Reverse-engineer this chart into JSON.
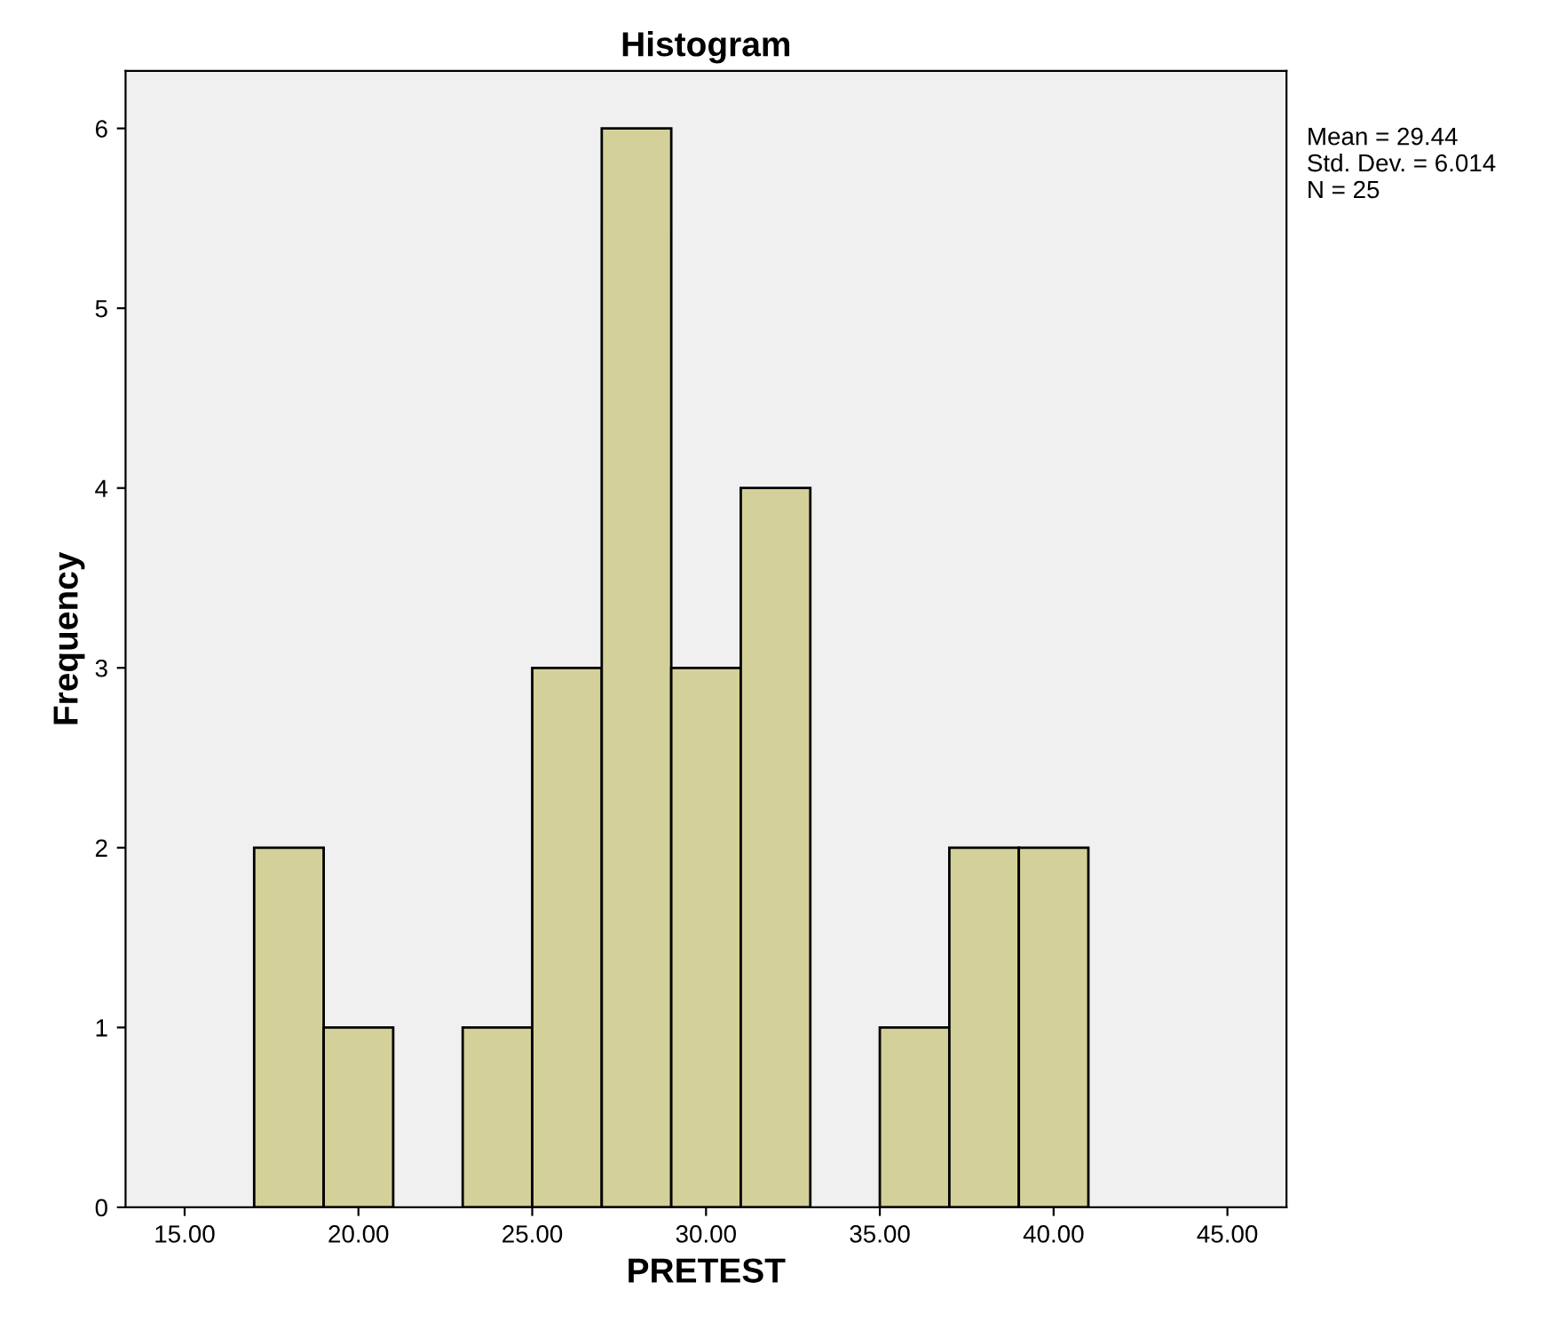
{
  "chart_data": {
    "type": "histogram",
    "title": "Histogram",
    "xlabel": "PRETEST",
    "ylabel": "Frequency",
    "bins": [
      17,
      19,
      21,
      23,
      25,
      27,
      29,
      31,
      33,
      35,
      37,
      39,
      41
    ],
    "values": [
      2,
      1,
      0,
      1,
      3,
      6,
      3,
      4,
      0,
      1,
      2,
      2
    ],
    "color": "#d4d09a",
    "xlim": [
      13.3,
      46.7
    ],
    "xticks": [
      {
        "value": 15,
        "label": "15.00"
      },
      {
        "value": 20,
        "label": "20.00"
      },
      {
        "value": 25,
        "label": "25.00"
      },
      {
        "value": 30,
        "label": "30.00"
      },
      {
        "value": 35,
        "label": "35.00"
      },
      {
        "value": 40,
        "label": "40.00"
      },
      {
        "value": 45,
        "label": "45.00"
      }
    ],
    "ylim": [
      0,
      6.32
    ],
    "yticks": [
      0,
      1,
      2,
      3,
      4,
      5,
      6
    ],
    "annotations": [
      "Mean = 29.44\nStd. Dev. = 6.014\nN = 25"
    ]
  }
}
